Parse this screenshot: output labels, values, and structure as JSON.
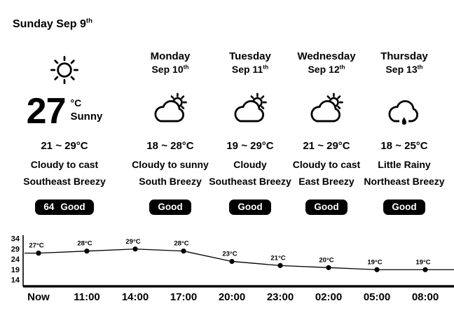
{
  "app": {
    "title_date": "Sunday Sep 9",
    "title_sup": "th"
  },
  "current": {
    "icon": "sun",
    "temperature": "27",
    "unit": "°C",
    "condition": "Sunny",
    "range": "21 ~ 29°C",
    "sky": "Cloudy to cast",
    "wind": "Southeast Breezy",
    "aqi_value": "64",
    "aqi_label": "Good"
  },
  "forecast": [
    {
      "day": "Monday",
      "date": "Sep 10",
      "date_sup": "th",
      "icon": "cloud-sun",
      "range": "18 ~ 28°C",
      "sky": "Cloudy to sunny",
      "wind": "South Breezy",
      "aqi_label": "Good"
    },
    {
      "day": "Tuesday",
      "date": "Sep 11",
      "date_sup": "th",
      "icon": "cloud-sun",
      "range": "19 ~ 29°C",
      "sky": "Cloudy",
      "wind": "Southeast Breezy",
      "aqi_label": "Good"
    },
    {
      "day": "Wednesday",
      "date": "Sep 12",
      "date_sup": "th",
      "icon": "cloud-sun",
      "range": "21 ~ 29°C",
      "sky": "Cloudy to cast",
      "wind": "East Breezy",
      "aqi_label": "Good"
    },
    {
      "day": "Thursday",
      "date": "Sep 13",
      "date_sup": "th",
      "icon": "cloud-rain",
      "range": "18 ~ 25°C",
      "sky": "Little Rainy",
      "wind": "Northeast Breezy",
      "aqi_label": "Good"
    }
  ],
  "chart_data": {
    "type": "line",
    "x": [
      "Now",
      "11:00",
      "14:00",
      "17:00",
      "20:00",
      "23:00",
      "02:00",
      "05:00",
      "08:00"
    ],
    "values": [
      27,
      28,
      29,
      28,
      23,
      21,
      20,
      19,
      19
    ],
    "point_labels": [
      "27°C",
      "28°C",
      "29°C",
      "28°C",
      "23°C",
      "21°C",
      "20°C",
      "19°C",
      "19°C"
    ],
    "y_ticks": [
      34,
      29,
      24,
      19,
      14
    ],
    "ylim": [
      14,
      34
    ],
    "grid": false,
    "legend": "none",
    "line_color": "#000000",
    "title": "",
    "xlabel": "",
    "ylabel": ""
  },
  "colors": {
    "foreground": "#000000",
    "background": "#ffffff",
    "badge_bg": "#000000",
    "badge_fg": "#ffffff"
  }
}
